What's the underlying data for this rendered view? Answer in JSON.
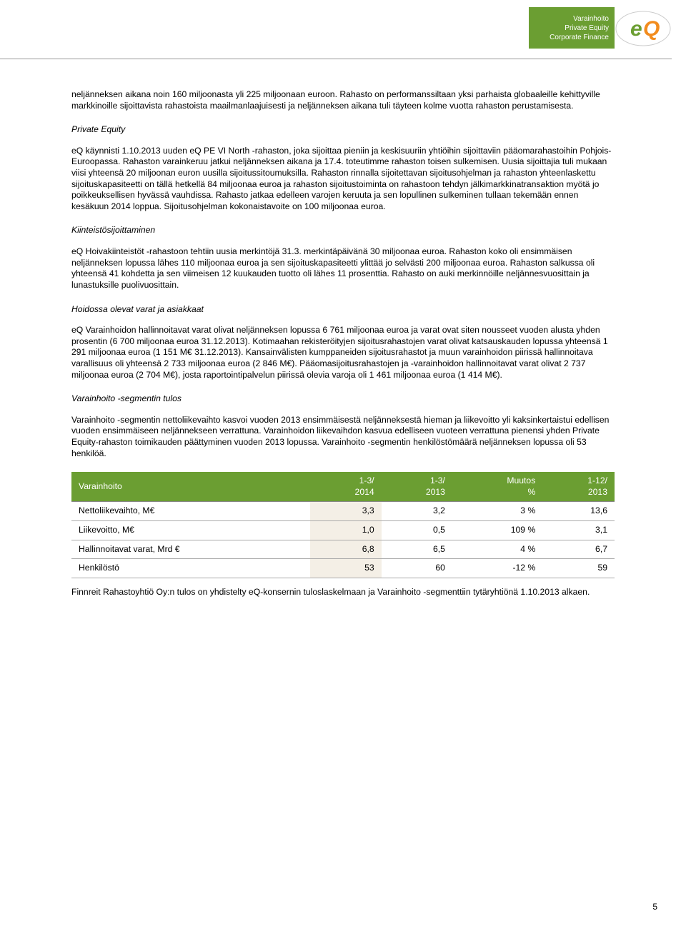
{
  "header": {
    "services": [
      "Varainhoito",
      "Private Equity",
      "Corporate Finance"
    ],
    "logo_text": "eQ",
    "logo_bg": "#ffffff",
    "logo_color_e": "#6b9e32",
    "logo_color_q": "#f28c1e"
  },
  "para_intro": "neljänneksen aikana noin 160 miljoonasta yli 225 miljoonaan euroon. Rahasto on performanssiltaan yksi parhaista globaaleille kehittyville markkinoille sijoittavista rahastoista maailmanlaajuisesti ja neljänneksen aikana tuli täyteen kolme vuotta rahaston perustamisesta.",
  "section_pe_title": "Private Equity",
  "para_pe": "eQ käynnisti 1.10.2013 uuden eQ PE VI North -rahaston, joka sijoittaa pieniin ja keskisuuriin yhtiöihin sijoittaviin pääomarahastoihin Pohjois-Euroopassa. Rahaston varainkeruu jatkui neljänneksen aikana ja 17.4. toteutimme rahaston toisen sulkemisen. Uusia sijoittajia tuli mukaan viisi yhteensä 20 miljoonan euron uusilla sijoitussitoumuksilla. Rahaston rinnalla sijoitettavan sijoitusohjelman ja rahaston yhteenlaskettu sijoituskapasiteetti on tällä hetkellä 84 miljoonaa euroa ja rahaston sijoitustoiminta on rahastoon tehdyn jälkimarkkinatransaktion myötä jo poikkeuksellisen hyvässä vauhdissa. Rahasto jatkaa edelleen varojen keruuta ja sen lopullinen sulkeminen tullaan tekemään ennen kesäkuun 2014 loppua. Sijoitusohjelman kokonaistavoite on 100 miljoonaa euroa.",
  "section_re_title": "Kiinteistösijoittaminen",
  "para_re": "eQ Hoivakiinteistöt -rahastoon tehtiin uusia merkintöjä 31.3. merkintäpäivänä 30 miljoonaa euroa. Rahaston koko oli ensimmäisen neljänneksen lopussa lähes 110 miljoonaa euroa ja sen sijoituskapasiteetti ylittää jo selvästi 200 miljoonaa euroa. Rahaston salkussa oli yhteensä 41 kohdetta ja sen viimeisen 12 kuukauden tuotto oli lähes 11 prosenttia. Rahasto on auki merkinnöille neljännesvuosittain ja lunastuksille puolivuosittain.",
  "section_aum_title": "Hoidossa olevat varat ja asiakkaat",
  "para_aum": "eQ Varainhoidon hallinnoitavat varat olivat neljänneksen lopussa 6 761 miljoonaa euroa ja varat ovat siten nousseet vuoden alusta yhden prosentin (6 700 miljoonaa euroa 31.12.2013). Kotimaahan rekisteröityjen sijoitusrahastojen varat olivat katsauskauden lopussa yhteensä 1 291 miljoonaa euroa (1 151 M€ 31.12.2013). Kansainvälisten kumppaneiden sijoitusrahastot ja muun varainhoidon piirissä hallinnoitava varallisuus oli yhteensä 2 733 miljoonaa euroa (2 846 M€). Pääomasijoitusrahastojen ja -varainhoidon hallinnoitavat varat olivat 2 737 miljoonaa euroa (2 704 M€), josta raportointipalvelun piirissä olevia varoja oli 1 461 miljoonaa euroa (1 414 M€).",
  "section_result_title": "Varainhoito -segmentin tulos",
  "para_result": "Varainhoito -segmentin nettoliikevaihto kasvoi vuoden 2013 ensimmäisestä neljänneksestä hieman ja liikevoitto yli kaksinkertaistui edellisen vuoden ensimmäiseen neljännekseen verrattuna. Varainhoidon liikevaihdon kasvua edelliseen vuoteen verrattuna pienensi yhden Private Equity-rahaston toimikauden päättyminen vuoden 2013 lopussa. Varainhoito -segmentin henkilöstömäärä neljänneksen lopussa oli 53 henkilöä.",
  "table": {
    "header_bg": "#6b9e32",
    "header_color": "#ffffff",
    "shade_bg": "#f4efe6",
    "columns": [
      "Varainhoito",
      "1-3/\n2014",
      "1-3/\n2013",
      "Muutos\n%",
      "1-12/\n2013"
    ],
    "rows": [
      [
        "Nettoliikevaihto, M€",
        "3,3",
        "3,2",
        "3 %",
        "13,6"
      ],
      [
        "Liikevoitto, M€",
        "1,0",
        "0,5",
        "109 %",
        "3,1"
      ],
      [
        "Hallinnoitavat varat, Mrd €",
        "6,8",
        "6,5",
        "4 %",
        "6,7"
      ],
      [
        "Henkilöstö",
        "53",
        "60",
        "-12 %",
        "59"
      ]
    ]
  },
  "para_footer": "Finnreit Rahastoyhtiö Oy:n tulos on yhdistelty eQ-konsernin tuloslaskelmaan ja Varainhoito -segmenttiin tytäryhtiönä 1.10.2013 alkaen.",
  "page_number": "5"
}
